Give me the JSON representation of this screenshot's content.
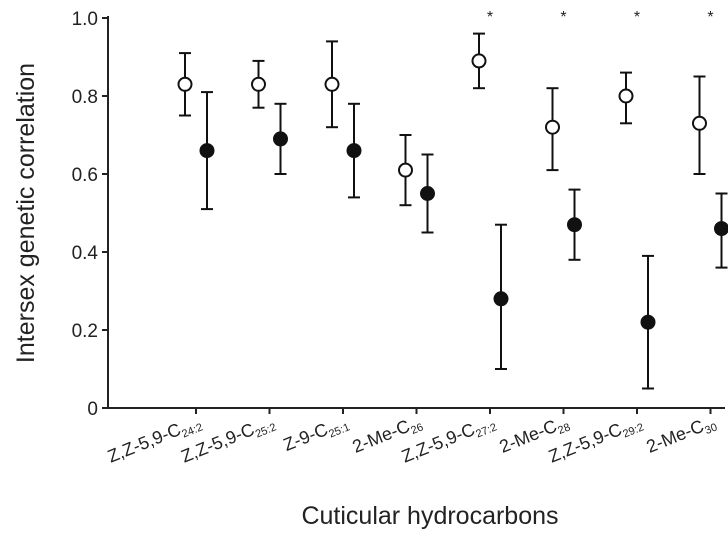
{
  "chart_data": {
    "type": "scatter",
    "xlabel": "Cuticular hydrocarbons",
    "ylabel": "Intersex genetic correlation",
    "ylim": [
      0,
      1
    ],
    "yticks": [
      {
        "value": 0,
        "label": "0"
      },
      {
        "value": 0.2,
        "label": "0.2"
      },
      {
        "value": 0.4,
        "label": "0.4"
      },
      {
        "value": 0.6,
        "label": "0.6"
      },
      {
        "value": 0.8,
        "label": "0.8"
      },
      {
        "value": 1.0,
        "label": "1.0"
      }
    ],
    "grid": false,
    "categories": [
      {
        "base": "Z,Z-5,9-C",
        "sub": "24:2",
        "star": ""
      },
      {
        "base": "Z,Z-5,9-C",
        "sub": "25:2",
        "star": ""
      },
      {
        "base": "Z-9-C",
        "sub": "25:1",
        "star": ""
      },
      {
        "base": "2-Me-C",
        "sub": "26",
        "star": ""
      },
      {
        "base": "Z,Z-5,9-C",
        "sub": "27:2",
        "star": "*"
      },
      {
        "base": "2-Me-C",
        "sub": "28",
        "star": "*"
      },
      {
        "base": "Z,Z-5,9-C",
        "sub": "29:2",
        "star": "*"
      },
      {
        "base": "2-Me-C",
        "sub": "30",
        "star": "*"
      }
    ],
    "series": [
      {
        "marker": "open-circle",
        "values": [
          0.83,
          0.83,
          0.83,
          0.61,
          0.89,
          0.72,
          0.8,
          0.73
        ],
        "lower": [
          0.75,
          0.77,
          0.72,
          0.52,
          0.82,
          0.61,
          0.73,
          0.6
        ],
        "upper": [
          0.91,
          0.89,
          0.94,
          0.7,
          0.96,
          0.82,
          0.86,
          0.85
        ]
      },
      {
        "marker": "filled-circle",
        "values": [
          0.66,
          0.69,
          0.66,
          0.55,
          0.28,
          0.47,
          0.22,
          0.46
        ],
        "lower": [
          0.51,
          0.6,
          0.54,
          0.45,
          0.1,
          0.38,
          0.05,
          0.36
        ],
        "upper": [
          0.81,
          0.78,
          0.78,
          0.65,
          0.47,
          0.56,
          0.39,
          0.55
        ]
      }
    ]
  }
}
